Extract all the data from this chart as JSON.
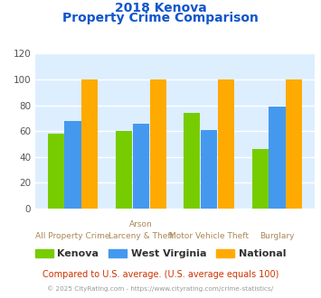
{
  "title_line1": "2018 Kenova",
  "title_line2": "Property Crime Comparison",
  "categories_top": [
    "",
    "Arson",
    "",
    ""
  ],
  "categories_bot": [
    "All Property Crime",
    "Larceny & Theft",
    "Motor Vehicle Theft",
    "Burglary"
  ],
  "kenova": [
    58,
    60,
    74,
    46
  ],
  "west_virginia": [
    68,
    66,
    61,
    79
  ],
  "national": [
    100,
    100,
    100,
    100
  ],
  "colors": {
    "kenova": "#77cc00",
    "west_virginia": "#4499ee",
    "national": "#ffaa00"
  },
  "ylim": [
    0,
    120
  ],
  "yticks": [
    0,
    20,
    40,
    60,
    80,
    100,
    120
  ],
  "title_color": "#1155cc",
  "axes_bg": "#ddeeff",
  "grid_color": "#ffffff",
  "xlabel_color": "#aa8855",
  "legend_labels": [
    "Kenova",
    "West Virginia",
    "National"
  ],
  "footnote1": "Compared to U.S. average. (U.S. average equals 100)",
  "footnote2": "© 2025 CityRating.com - https://www.cityrating.com/crime-statistics/",
  "footnote1_color": "#cc3300",
  "footnote2_color": "#999999"
}
